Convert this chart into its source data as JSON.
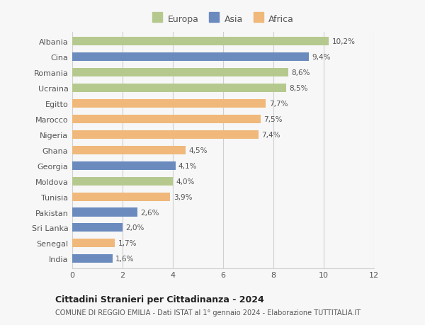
{
  "countries": [
    "Albania",
    "Cina",
    "Romania",
    "Ucraina",
    "Egitto",
    "Marocco",
    "Nigeria",
    "Ghana",
    "Georgia",
    "Moldova",
    "Tunisia",
    "Pakistan",
    "Sri Lanka",
    "Senegal",
    "India"
  ],
  "values": [
    10.2,
    9.4,
    8.6,
    8.5,
    7.7,
    7.5,
    7.4,
    4.5,
    4.1,
    4.0,
    3.9,
    2.6,
    2.0,
    1.7,
    1.6
  ],
  "labels": [
    "10,2%",
    "9,4%",
    "8,6%",
    "8,5%",
    "7,7%",
    "7,5%",
    "7,4%",
    "4,5%",
    "4,1%",
    "4,0%",
    "3,9%",
    "2,6%",
    "2,0%",
    "1,7%",
    "1,6%"
  ],
  "continents": [
    "Europa",
    "Asia",
    "Europa",
    "Europa",
    "Africa",
    "Africa",
    "Africa",
    "Africa",
    "Asia",
    "Europa",
    "Africa",
    "Asia",
    "Asia",
    "Africa",
    "Asia"
  ],
  "colors": {
    "Europa": "#b5c98e",
    "Asia": "#6b8bbf",
    "Africa": "#f0b87a"
  },
  "xlim": [
    0,
    12
  ],
  "xticks": [
    0,
    2,
    4,
    6,
    8,
    10,
    12
  ],
  "title": "Cittadini Stranieri per Cittadinanza - 2024",
  "subtitle": "COMUNE DI REGGIO EMILIA - Dati ISTAT al 1° gennaio 2024 - Elaborazione TUTTITALIA.IT",
  "background_color": "#f7f7f7",
  "grid_color": "#d0d0d0",
  "bar_height": 0.55,
  "fig_width": 6.0,
  "fig_height": 4.6
}
